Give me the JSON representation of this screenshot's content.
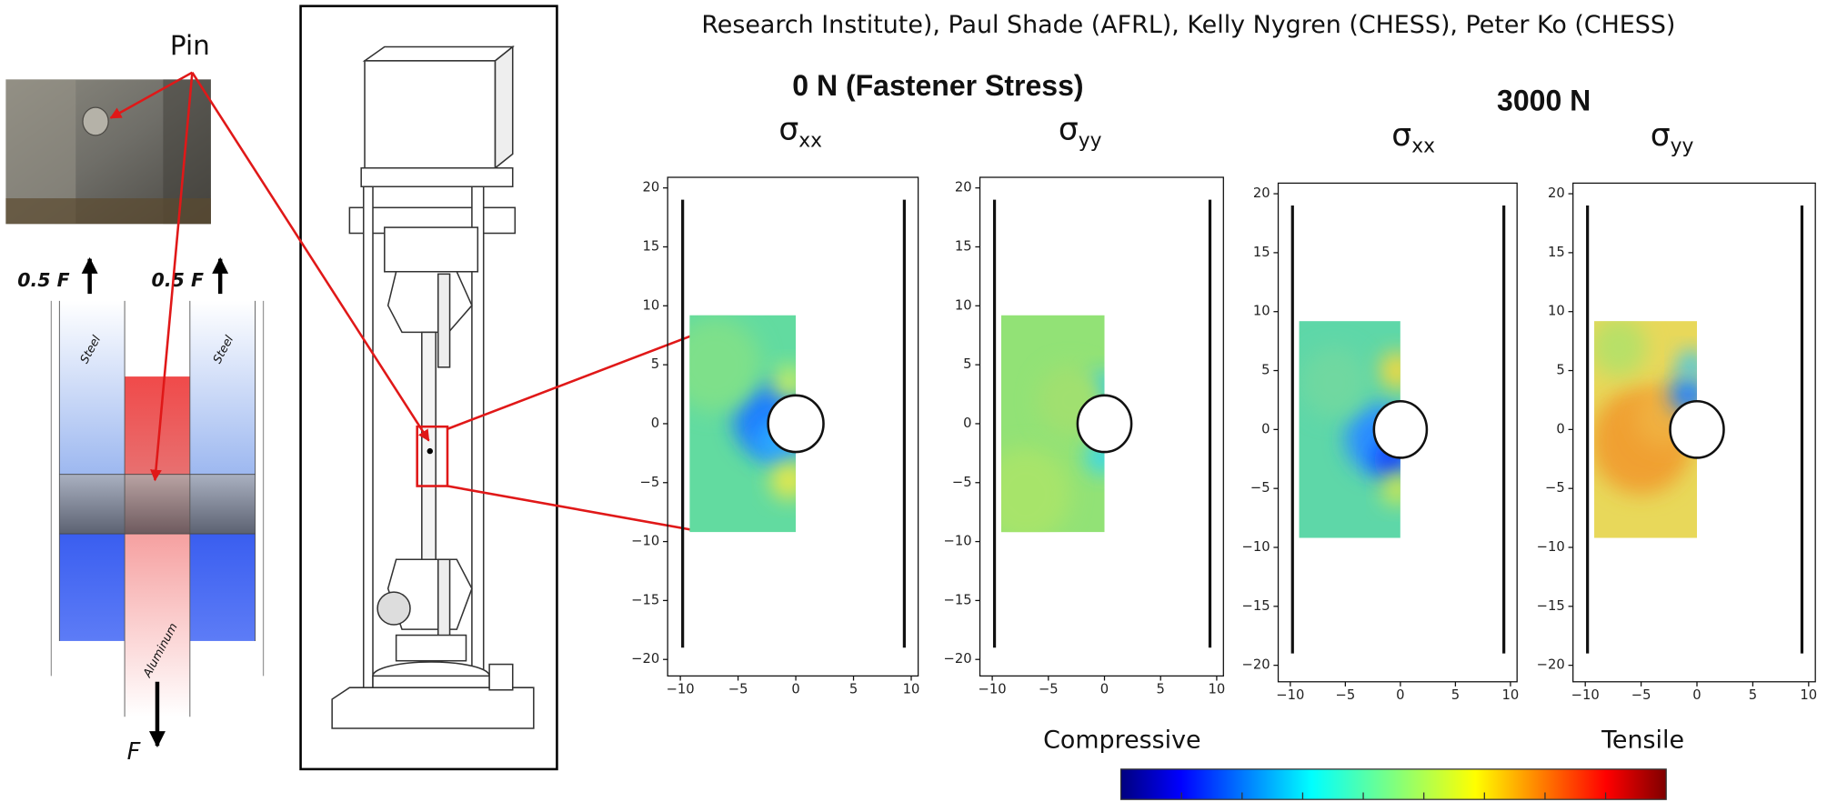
{
  "header": {
    "authors_line": "Research Institute), Paul Shade (AFRL), Kelly Nygren (CHESS), Peter Ko (CHESS)"
  },
  "schematic": {
    "pin_label": "Pin",
    "left_force": "0.5 F",
    "right_force": "0.5 F",
    "bottom_force": "F",
    "left_plate": "Steel",
    "right_plate": "Steel",
    "center_plate": "Aluminum"
  },
  "load_cases": [
    {
      "title": "0 N (Fastener Stress)"
    },
    {
      "title": "3000 N"
    }
  ],
  "plots": [
    {
      "symbol": "σ",
      "component": "xx",
      "xlim": [
        -11.1,
        10.6
      ],
      "ylim": [
        -21.4,
        20.9
      ],
      "xticks": [
        {
          "value": -10,
          "label": "−10"
        },
        {
          "value": -5,
          "label": "−5"
        },
        0,
        5,
        10
      ],
      "yticks": [
        20,
        15,
        10,
        5,
        0,
        {
          "value": -5,
          "label": "−5"
        },
        {
          "value": -10,
          "label": "−10"
        },
        {
          "value": -15,
          "label": "−15"
        },
        {
          "value": -20,
          "label": "−20"
        }
      ]
    },
    {
      "symbol": "σ",
      "component": "yy",
      "xlim": [
        -11.1,
        10.6
      ],
      "ylim": [
        -21.4,
        20.9
      ],
      "xticks": [
        {
          "value": -10,
          "label": "−10"
        },
        {
          "value": -5,
          "label": "−5"
        },
        0,
        5,
        10
      ],
      "yticks": [
        20,
        15,
        10,
        5,
        0,
        {
          "value": -5,
          "label": "−5"
        },
        {
          "value": -10,
          "label": "−10"
        },
        {
          "value": -15,
          "label": "−15"
        },
        {
          "value": -20,
          "label": "−20"
        }
      ]
    },
    {
      "symbol": "σ",
      "component": "xx",
      "xlim": [
        -11.1,
        10.6
      ],
      "ylim": [
        -21.4,
        20.9
      ],
      "xticks": [
        {
          "value": -10,
          "label": "−10"
        },
        {
          "value": -5,
          "label": "−5"
        },
        0,
        5,
        10
      ],
      "yticks": [
        20,
        15,
        10,
        5,
        0,
        {
          "value": -5,
          "label": "−5"
        },
        {
          "value": -10,
          "label": "−10"
        },
        {
          "value": -15,
          "label": "−15"
        },
        {
          "value": -20,
          "label": "−20"
        }
      ]
    },
    {
      "symbol": "σ",
      "component": "yy",
      "xlim": [
        -11.1,
        10.6
      ],
      "ylim": [
        -21.4,
        20.9
      ],
      "xticks": [
        {
          "value": -10,
          "label": "−10"
        },
        {
          "value": -5,
          "label": "−5"
        },
        0,
        5,
        10
      ],
      "yticks": [
        20,
        15,
        10,
        5,
        0,
        {
          "value": -5,
          "label": "−5"
        },
        {
          "value": -10,
          "label": "−10"
        },
        {
          "value": -15,
          "label": "−15"
        },
        {
          "value": -20,
          "label": "−20"
        }
      ]
    }
  ],
  "colorbar": {
    "low_label": "Compressive",
    "high_label": "Tensile"
  }
}
